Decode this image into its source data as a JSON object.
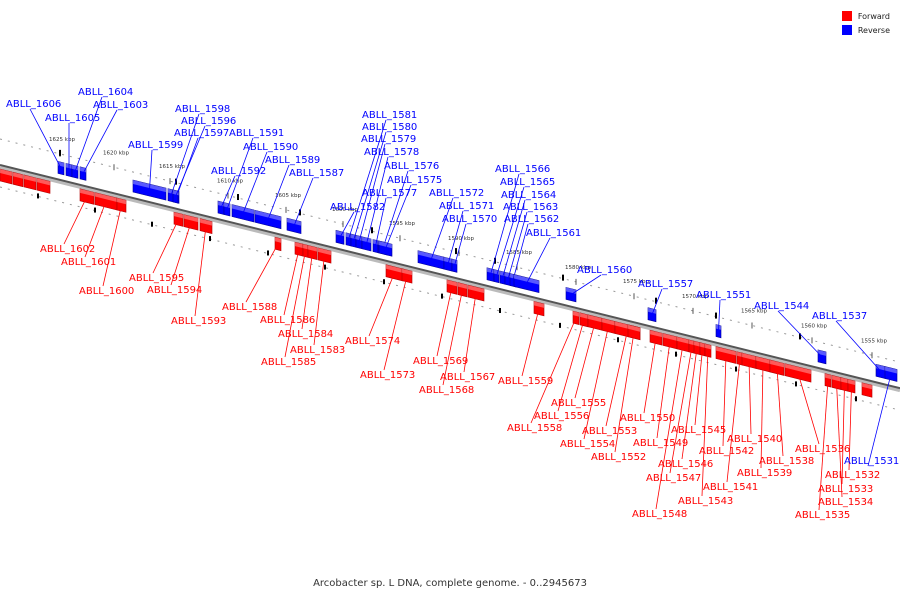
{
  "legend": {
    "forward_label": "Forward",
    "reverse_label": "Reverse",
    "forward_color": "#ff0000",
    "reverse_color": "#0000ff"
  },
  "caption": "Arcobacter sp. L DNA, complete genome. - 0..2945673",
  "scale_marks": [
    "1625 kbp",
    "1620 kbp",
    "1615 kbp",
    "1610 kbp",
    "1605 kbp",
    "1600 kbp",
    "1595 kbp",
    "1590 kbp",
    "1585 kbp",
    "1580 kbp",
    "1575 kbp",
    "1570 kbp",
    "1565 kbp",
    "1560 kbp",
    "1555 kbp"
  ],
  "genes": [
    {
      "label": "ABLL_1606",
      "strand": "reverse"
    },
    {
      "label": "ABLL_1605",
      "strand": "reverse"
    },
    {
      "label": "ABLL_1604",
      "strand": "reverse"
    },
    {
      "label": "ABLL_1603",
      "strand": "reverse"
    },
    {
      "label": "ABLL_1602",
      "strand": "forward"
    },
    {
      "label": "ABLL_1601",
      "strand": "forward"
    },
    {
      "label": "ABLL_1600",
      "strand": "forward"
    },
    {
      "label": "ABLL_1599",
      "strand": "reverse"
    },
    {
      "label": "ABLL_1598",
      "strand": "reverse"
    },
    {
      "label": "ABLL_1597",
      "strand": "reverse"
    },
    {
      "label": "ABLL_1596",
      "strand": "reverse"
    },
    {
      "label": "ABLL_1595",
      "strand": "forward"
    },
    {
      "label": "ABLL_1594",
      "strand": "forward"
    },
    {
      "label": "ABLL_1593",
      "strand": "forward"
    },
    {
      "label": "ABLL_1592",
      "strand": "reverse"
    },
    {
      "label": "ABLL_1591",
      "strand": "reverse"
    },
    {
      "label": "ABLL_1590",
      "strand": "reverse"
    },
    {
      "label": "ABLL_1589",
      "strand": "reverse"
    },
    {
      "label": "ABLL_1588",
      "strand": "forward"
    },
    {
      "label": "ABLL_1587",
      "strand": "reverse"
    },
    {
      "label": "ABLL_1586",
      "strand": "forward"
    },
    {
      "label": "ABLL_1585",
      "strand": "forward"
    },
    {
      "label": "ABLL_1584",
      "strand": "forward"
    },
    {
      "label": "ABLL_1583",
      "strand": "forward"
    },
    {
      "label": "ABLL_1582",
      "strand": "reverse"
    },
    {
      "label": "ABLL_1581",
      "strand": "reverse"
    },
    {
      "label": "ABLL_1580",
      "strand": "reverse"
    },
    {
      "label": "ABLL_1579",
      "strand": "reverse"
    },
    {
      "label": "ABLL_1578",
      "strand": "reverse"
    },
    {
      "label": "ABLL_1577",
      "strand": "reverse"
    },
    {
      "label": "ABLL_1576",
      "strand": "reverse"
    },
    {
      "label": "ABLL_1575",
      "strand": "reverse"
    },
    {
      "label": "ABLL_1574",
      "strand": "forward"
    },
    {
      "label": "ABLL_1573",
      "strand": "forward"
    },
    {
      "label": "ABLL_1572",
      "strand": "reverse"
    },
    {
      "label": "ABLL_1571",
      "strand": "reverse"
    },
    {
      "label": "ABLL_1570",
      "strand": "reverse"
    },
    {
      "label": "ABLL_1569",
      "strand": "forward"
    },
    {
      "label": "ABLL_1568",
      "strand": "forward"
    },
    {
      "label": "ABLL_1567",
      "strand": "forward"
    },
    {
      "label": "ABLL_1566",
      "strand": "reverse"
    },
    {
      "label": "ABLL_1565",
      "strand": "reverse"
    },
    {
      "label": "ABLL_1564",
      "strand": "reverse"
    },
    {
      "label": "ABLL_1563",
      "strand": "reverse"
    },
    {
      "label": "ABLL_1562",
      "strand": "reverse"
    },
    {
      "label": "ABLL_1561",
      "strand": "reverse"
    },
    {
      "label": "ABLL_1560",
      "strand": "reverse"
    },
    {
      "label": "ABLL_1559",
      "strand": "forward"
    },
    {
      "label": "ABLL_1558",
      "strand": "forward"
    },
    {
      "label": "ABLL_1557",
      "strand": "reverse"
    },
    {
      "label": "ABLL_1556",
      "strand": "forward"
    },
    {
      "label": "ABLL_1555",
      "strand": "forward"
    },
    {
      "label": "ABLL_1554",
      "strand": "forward"
    },
    {
      "label": "ABLL_1553",
      "strand": "forward"
    },
    {
      "label": "ABLL_1552",
      "strand": "forward"
    },
    {
      "label": "ABLL_1551",
      "strand": "reverse"
    },
    {
      "label": "ABLL_1550",
      "strand": "forward"
    },
    {
      "label": "ABLL_1549",
      "strand": "forward"
    },
    {
      "label": "ABLL_1548",
      "strand": "forward"
    },
    {
      "label": "ABLL_1547",
      "strand": "forward"
    },
    {
      "label": "ABLL_1546",
      "strand": "forward"
    },
    {
      "label": "ABLL_1545",
      "strand": "forward"
    },
    {
      "label": "ABLL_1544",
      "strand": "reverse"
    },
    {
      "label": "ABLL_1543",
      "strand": "forward"
    },
    {
      "label": "ABLL_1542",
      "strand": "forward"
    },
    {
      "label": "ABLL_1541",
      "strand": "forward"
    },
    {
      "label": "ABLL_1540",
      "strand": "forward"
    },
    {
      "label": "ABLL_1539",
      "strand": "forward"
    },
    {
      "label": "ABLL_1538",
      "strand": "forward"
    },
    {
      "label": "ABLL_1537",
      "strand": "reverse"
    },
    {
      "label": "ABLL_1536",
      "strand": "forward"
    },
    {
      "label": "ABLL_1535",
      "strand": "forward"
    },
    {
      "label": "ABLL_1534",
      "strand": "forward"
    },
    {
      "label": "ABLL_1533",
      "strand": "forward"
    },
    {
      "label": "ABLL_1532",
      "strand": "forward"
    },
    {
      "label": "ABLL_1531",
      "strand": "reverse"
    }
  ]
}
